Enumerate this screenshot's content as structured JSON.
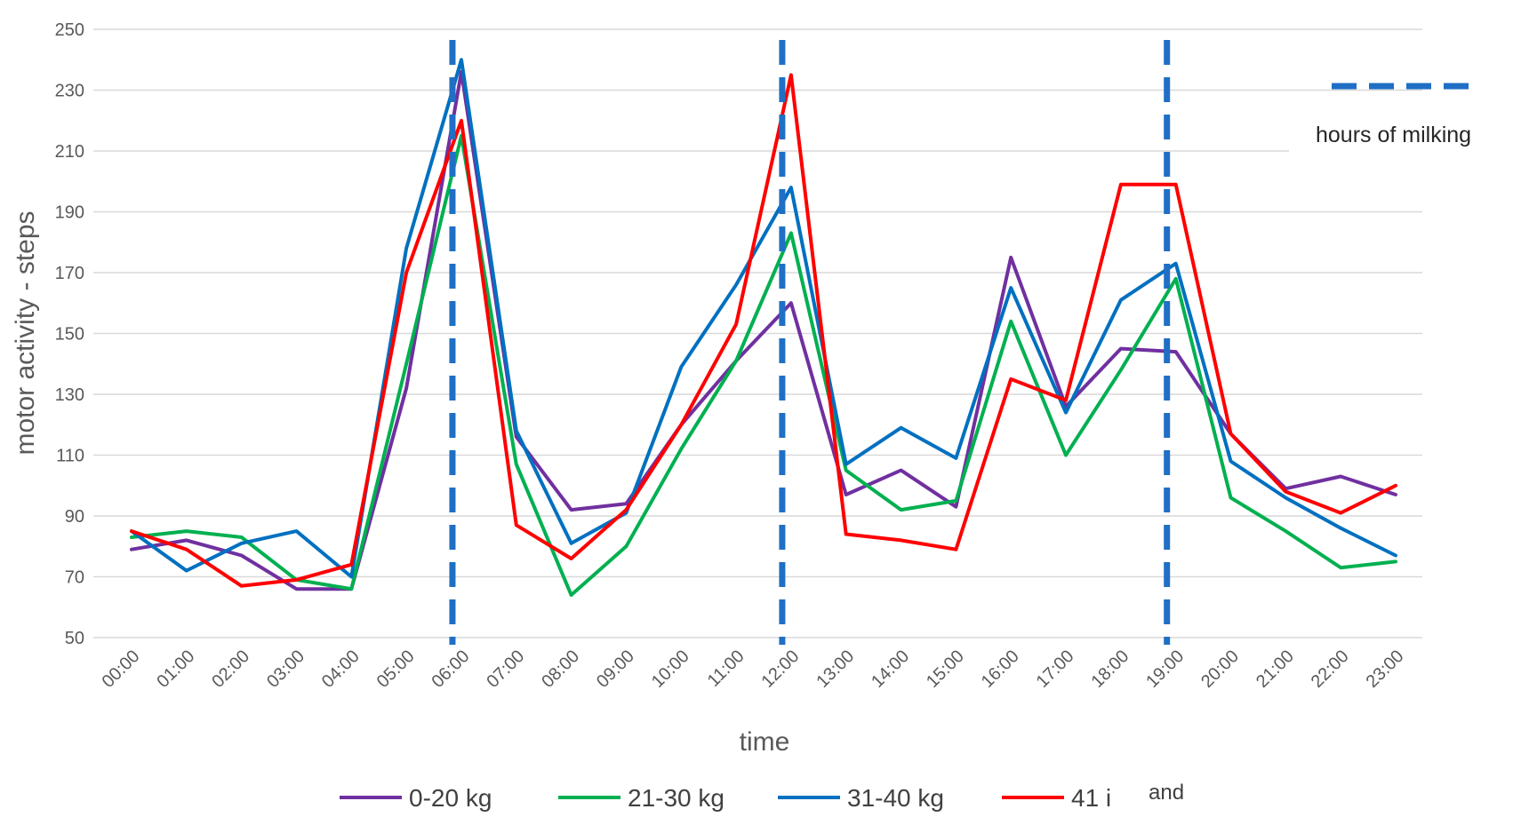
{
  "chart_data": {
    "type": "line",
    "title": "",
    "xlabel": "time",
    "ylabel": "motor activity - steps",
    "ylim": [
      50,
      250
    ],
    "yticks": [
      50,
      70,
      90,
      110,
      130,
      150,
      170,
      190,
      210,
      230,
      250
    ],
    "grid": true,
    "categories": [
      "00:00",
      "01:00",
      "02:00",
      "03:00",
      "04:00",
      "05:00",
      "06:00",
      "07:00",
      "08:00",
      "09:00",
      "10:00",
      "11:00",
      "12:00",
      "13:00",
      "14:00",
      "15:00",
      "16:00",
      "17:00",
      "18:00",
      "19:00",
      "20:00",
      "21:00",
      "22:00",
      "23:00"
    ],
    "series": [
      {
        "name": "0-20 kg",
        "color": "#7030a0",
        "values": [
          79,
          82,
          77,
          66,
          66,
          132,
          236,
          116,
          92,
          94,
          120,
          141,
          160,
          97,
          105,
          93,
          175,
          126,
          145,
          144,
          117,
          99,
          103,
          97
        ]
      },
      {
        "name": "21-30 kg",
        "color": "#00b050",
        "values": [
          83,
          85,
          83,
          69,
          66,
          140,
          215,
          107,
          64,
          80,
          112,
          141,
          183,
          105,
          92,
          95,
          154,
          110,
          138,
          168,
          96,
          85,
          73,
          75
        ]
      },
      {
        "name": "31-40 kg",
        "color": "#0070c0",
        "values": [
          85,
          72,
          81,
          85,
          70,
          178,
          240,
          118,
          81,
          91,
          139,
          166,
          198,
          107,
          119,
          109,
          165,
          124,
          161,
          173,
          108,
          96,
          86,
          77
        ]
      },
      {
        "name": "41 i",
        "color": "#ff0000",
        "values": [
          85,
          79,
          67,
          69,
          74,
          170,
          220,
          87,
          76,
          92,
          120,
          153,
          235,
          84,
          82,
          79,
          135,
          128,
          199,
          199,
          117,
          98,
          91,
          100
        ]
      }
    ],
    "legend_extra_text": "and",
    "legend_position": "bottom",
    "annotations": [
      {
        "type": "vertical-dashed-line",
        "at": "06:00",
        "color": "#1f6fc5"
      },
      {
        "type": "vertical-dashed-line",
        "at": "12:00",
        "color": "#1f6fc5"
      },
      {
        "type": "vertical-dashed-line",
        "at": "19:00",
        "color": "#1f6fc5"
      }
    ],
    "annotation_legend": {
      "label": "hours of milking",
      "color": "#1f6fc5",
      "position": "top-right"
    }
  }
}
